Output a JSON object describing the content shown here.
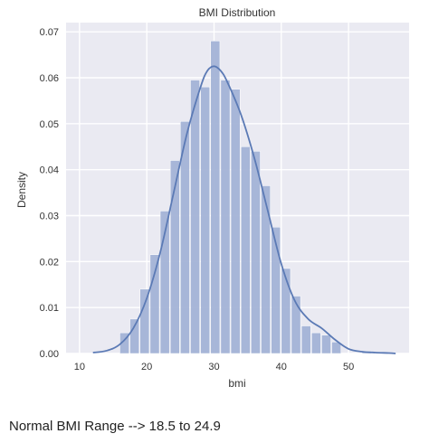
{
  "chart_data": {
    "type": "bar",
    "title": "BMI Distribution",
    "xlabel": "bmi",
    "ylabel": "Density",
    "xlim": [
      8,
      59
    ],
    "ylim": [
      0,
      0.072
    ],
    "xticks": [
      "10",
      "20",
      "30",
      "40",
      "50"
    ],
    "yticks": [
      "0.00",
      "0.01",
      "0.02",
      "0.03",
      "0.04",
      "0.05",
      "0.06",
      "0.07"
    ],
    "grid": true,
    "bin_edges": [
      16.0,
      17.5,
      19.0,
      20.5,
      22.0,
      23.5,
      25.0,
      26.5,
      28.0,
      29.5,
      31.0,
      32.5,
      34.0,
      35.5,
      37.0,
      38.5,
      40.0,
      41.5,
      43.0,
      44.5,
      46.0,
      47.5,
      49.0,
      50.5,
      52.0,
      53.5
    ],
    "values": [
      0.0045,
      0.0075,
      0.014,
      0.0215,
      0.031,
      0.042,
      0.0505,
      0.0595,
      0.058,
      0.068,
      0.0595,
      0.0575,
      0.045,
      0.044,
      0.0365,
      0.0275,
      0.0185,
      0.0125,
      0.006,
      0.0045,
      0.004,
      0.0025,
      0.0,
      0.0,
      0.0005
    ],
    "kde": {
      "x": [
        12,
        14,
        16,
        18,
        20,
        22,
        24,
        26,
        28,
        29,
        30,
        31,
        32,
        34,
        36,
        38,
        40,
        42,
        44,
        46,
        48,
        50,
        52,
        54,
        56,
        57
      ],
      "y": [
        0.0002,
        0.0006,
        0.002,
        0.0055,
        0.012,
        0.022,
        0.035,
        0.048,
        0.058,
        0.0615,
        0.0625,
        0.0615,
        0.059,
        0.052,
        0.0425,
        0.031,
        0.0195,
        0.0115,
        0.0075,
        0.0055,
        0.003,
        0.001,
        0.0004,
        0.0002,
        0.0001,
        0.0
      ]
    },
    "colors": {
      "bar": "#a3b3d6",
      "line": "#5b7ab5",
      "background": "#eaeaf2",
      "grid": "#ffffff"
    }
  },
  "caption": "Normal BMI Range --> 18.5 to 24.9"
}
